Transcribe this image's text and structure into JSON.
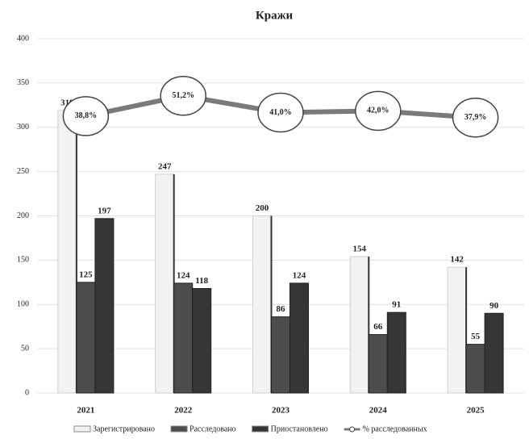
{
  "chart_data": {
    "type": "bar-line",
    "title": "Кражи",
    "categories": [
      "2021",
      "2022",
      "2023",
      "2024",
      "2025"
    ],
    "series": [
      {
        "name": "Зарегистрировано",
        "color": "#f2f2f2",
        "values": [
          319,
          247,
          200,
          154,
          142
        ]
      },
      {
        "name": "Расследовано",
        "color": "#4d4d4d",
        "values": [
          125,
          124,
          86,
          66,
          55
        ]
      },
      {
        "name": "Приостановлено",
        "color": "#363636",
        "values": [
          197,
          118,
          124,
          91,
          90
        ]
      },
      {
        "name": "% расследованных",
        "color": "#7a7a7a",
        "type": "line",
        "axis": "y2",
        "values": [
          38.8,
          51.2,
          41.0,
          42.0,
          37.9
        ],
        "value_labels": [
          "38,8%",
          "51,2%",
          "41,0%",
          "42,0%",
          "37,9%"
        ]
      }
    ],
    "ylim": [
      0,
      400
    ],
    "yticks": [
      0,
      50,
      100,
      150,
      200,
      250,
      300,
      350,
      400
    ],
    "y2lim": [
      -130,
      86
    ],
    "grid": true,
    "legend": "bottom"
  }
}
